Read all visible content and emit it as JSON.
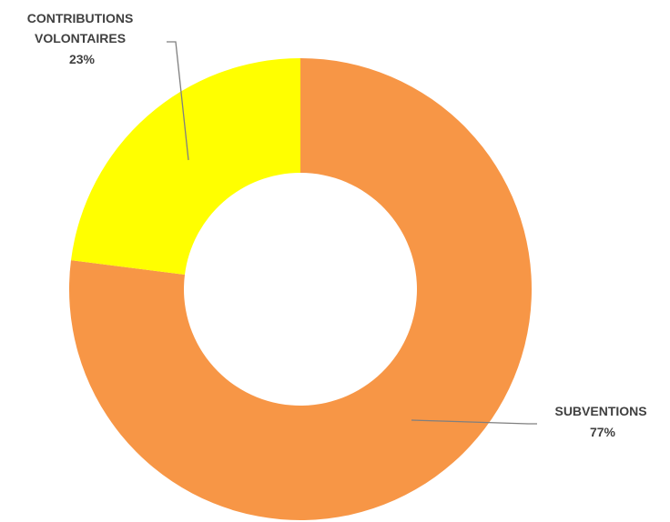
{
  "chart_data": {
    "type": "pie",
    "donut": true,
    "title": "",
    "slices": [
      {
        "label_lines": [
          "SUBVENTIONS"
        ],
        "percent_label": "77%",
        "value": 77,
        "color": "#f79646"
      },
      {
        "label_lines": [
          "CONTRIBUTIONS",
          "VOLONTAIRES"
        ],
        "percent_label": "23%",
        "value": 23,
        "color": "#ffff00"
      }
    ],
    "start_angle": "12 o'clock",
    "direction": "clockwise",
    "legend": "none",
    "data_labels": "outside with leader lines"
  }
}
